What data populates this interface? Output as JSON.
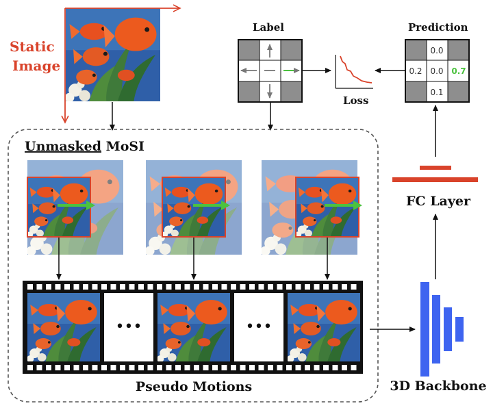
{
  "static_image": {
    "line1": "Static",
    "line2": "Image"
  },
  "label_title": "Label",
  "prediction_title": "Prediction",
  "loss_label": "Loss",
  "mosi": {
    "underlined": "Unmasked",
    "rest": " MoSI"
  },
  "pseudo_motions": "Pseudo Motions",
  "fc_layer": "FC Layer",
  "backbone": "3D Backbone",
  "ellipsis": "•••",
  "prediction": {
    "top": "0.0",
    "left": "0.2",
    "center": "0.0",
    "right": "0.7",
    "bottom": "0.1"
  },
  "colors": {
    "red": "#d9432b",
    "green": "#4cc23f",
    "blue": "#3e64f0",
    "gray": "#8e8e8e"
  }
}
